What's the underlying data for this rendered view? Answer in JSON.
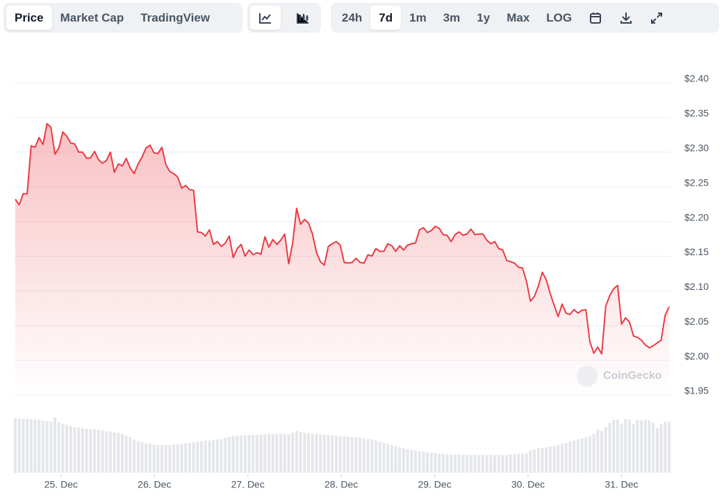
{
  "toolbar": {
    "views": [
      "Price",
      "Market Cap",
      "TradingView"
    ],
    "ranges": [
      "24h",
      "7d",
      "1m",
      "3m",
      "1y",
      "Max",
      "LOG"
    ]
  },
  "watermark": "CoinGecko",
  "chart_data": {
    "type": "area",
    "color": "#ea3943",
    "volume_color": "#e4e6ea",
    "grid": true,
    "xlim": [
      24.51,
      31.51
    ],
    "xticks": [
      {
        "value": 25,
        "label": "25. Dec"
      },
      {
        "value": 26,
        "label": "26. Dec"
      },
      {
        "value": 27,
        "label": "27. Dec"
      },
      {
        "value": 28,
        "label": "28. Dec"
      },
      {
        "value": 29,
        "label": "29. Dec"
      },
      {
        "value": 30,
        "label": "30. Dec"
      },
      {
        "value": 31,
        "label": "31. Dec"
      }
    ],
    "ylim": [
      1.95,
      2.4
    ],
    "yticks": [
      {
        "value": 1.95,
        "label": "$1.95"
      },
      {
        "value": 2.0,
        "label": "$2.00"
      },
      {
        "value": 2.05,
        "label": "$2.05"
      },
      {
        "value": 2.1,
        "label": "$2.10"
      },
      {
        "value": 2.15,
        "label": "$2.15"
      },
      {
        "value": 2.2,
        "label": "$2.20"
      },
      {
        "value": 2.25,
        "label": "$2.25"
      },
      {
        "value": 2.3,
        "label": "$2.30"
      },
      {
        "value": 2.35,
        "label": "$2.35"
      },
      {
        "value": 2.4,
        "label": "$2.40"
      }
    ],
    "values": [
      2.232,
      2.224,
      2.24,
      2.24,
      2.309,
      2.307,
      2.321,
      2.311,
      2.341,
      2.336,
      2.297,
      2.306,
      2.329,
      2.323,
      2.313,
      2.312,
      2.3,
      2.3,
      2.291,
      2.292,
      2.301,
      2.289,
      2.284,
      2.288,
      2.3,
      2.271,
      2.283,
      2.28,
      2.291,
      2.277,
      2.269,
      2.283,
      2.293,
      2.306,
      2.31,
      2.299,
      2.298,
      2.307,
      2.282,
      2.272,
      2.269,
      2.264,
      2.248,
      2.252,
      2.246,
      2.245,
      2.185,
      2.184,
      2.179,
      2.188,
      2.167,
      2.171,
      2.164,
      2.169,
      2.179,
      2.148,
      2.161,
      2.167,
      2.15,
      2.159,
      2.152,
      2.155,
      2.153,
      2.178,
      2.163,
      2.174,
      2.167,
      2.173,
      2.182,
      2.139,
      2.169,
      2.219,
      2.196,
      2.203,
      2.198,
      2.182,
      2.156,
      2.142,
      2.137,
      2.164,
      2.168,
      2.171,
      2.166,
      2.141,
      2.14,
      2.141,
      2.147,
      2.141,
      2.14,
      2.152,
      2.15,
      2.161,
      2.157,
      2.157,
      2.168,
      2.165,
      2.157,
      2.165,
      2.159,
      2.166,
      2.168,
      2.169,
      2.188,
      2.191,
      2.184,
      2.187,
      2.193,
      2.19,
      2.181,
      2.18,
      2.171,
      2.181,
      2.185,
      2.18,
      2.182,
      2.189,
      2.181,
      2.182,
      2.182,
      2.173,
      2.168,
      2.171,
      2.161,
      2.159,
      2.144,
      2.142,
      2.14,
      2.134,
      2.133,
      2.114,
      2.085,
      2.092,
      2.107,
      2.127,
      2.116,
      2.096,
      2.079,
      2.063,
      2.081,
      2.068,
      2.066,
      2.073,
      2.068,
      2.072,
      2.073,
      2.027,
      2.01,
      2.019,
      2.009,
      2.078,
      2.093,
      2.103,
      2.108,
      2.052,
      2.061,
      2.055,
      2.035,
      2.033,
      2.029,
      2.022,
      2.018,
      2.021,
      2.025,
      2.029,
      2.065,
      2.077
    ],
    "volume": [
      98,
      98,
      97,
      97,
      96,
      96,
      95,
      94,
      93,
      92,
      100,
      90,
      88,
      86,
      84,
      82,
      81,
      80,
      79,
      78,
      78,
      77,
      76,
      75,
      74,
      73,
      72,
      70,
      67,
      64,
      60,
      57,
      55,
      53,
      52,
      51,
      50,
      50,
      50,
      50,
      51,
      51,
      52,
      53,
      54,
      55,
      56,
      57,
      58,
      58,
      59,
      60,
      61,
      63,
      65,
      66,
      67,
      67,
      68,
      68,
      68,
      68,
      69,
      69,
      70,
      70,
      70,
      70,
      70,
      69,
      72,
      75,
      73,
      72,
      71,
      70,
      70,
      69,
      69,
      68,
      67,
      67,
      66,
      66,
      65,
      64,
      64,
      63,
      62,
      61,
      60,
      58,
      56,
      54,
      52,
      50,
      48,
      46,
      44,
      42,
      41,
      40,
      39,
      38,
      37,
      36,
      35,
      34,
      34,
      33,
      33,
      33,
      33,
      32,
      32,
      32,
      32,
      32,
      32,
      32,
      32,
      32,
      32,
      32,
      32,
      33,
      33,
      34,
      34,
      35,
      40,
      42,
      44,
      45,
      46,
      47,
      48,
      50,
      52,
      54,
      56,
      58,
      60,
      62,
      64,
      66,
      70,
      78,
      75,
      82,
      90,
      95,
      96,
      88,
      97,
      96,
      88,
      95,
      94,
      95,
      94,
      90,
      80,
      88,
      92,
      92
    ]
  }
}
